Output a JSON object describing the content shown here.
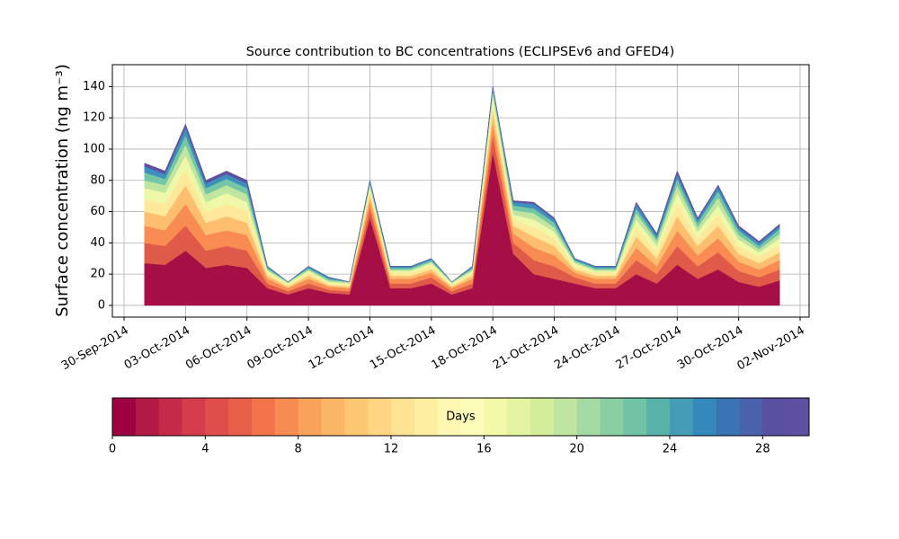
{
  "chart_data": {
    "type": "stacked_area",
    "title": "Source contribution to BC concentrations (ECLIPSEv6 and GFED4)",
    "y_label": "Surface concentration (ng m⁻³)",
    "x": [
      "2014-10-01",
      "2014-10-02",
      "2014-10-03",
      "2014-10-04",
      "2014-10-05",
      "2014-10-06",
      "2014-10-07",
      "2014-10-08",
      "2014-10-09",
      "2014-10-10",
      "2014-10-11",
      "2014-10-12",
      "2014-10-13",
      "2014-10-14",
      "2014-10-15",
      "2014-10-16",
      "2014-10-17",
      "2014-10-18",
      "2014-10-19",
      "2014-10-20",
      "2014-10-21",
      "2014-10-22",
      "2014-10-23",
      "2014-10-24",
      "2014-10-25",
      "2014-10-26",
      "2014-10-27",
      "2014-10-28",
      "2014-10-29",
      "2014-10-30",
      "2014-10-31",
      "2014-11-01"
    ],
    "series": [
      {
        "color": "#a50f45",
        "values": [
          27,
          26,
          35,
          24,
          26,
          24,
          11,
          7,
          11,
          8,
          7,
          56,
          11,
          11,
          14,
          7,
          11,
          98,
          33,
          20,
          17,
          14,
          11,
          11,
          20,
          14,
          26,
          17,
          23,
          15,
          12,
          16
        ]
      },
      {
        "color": "#e05a4a",
        "values": [
          13,
          12,
          16,
          11,
          12,
          11,
          3,
          2,
          3,
          2,
          2,
          6,
          3,
          3,
          4,
          2,
          3,
          11,
          7,
          9,
          8,
          4,
          3,
          3,
          9,
          6,
          12,
          8,
          11,
          7,
          6,
          7
        ]
      },
      {
        "color": "#f88c53",
        "values": [
          11,
          10,
          14,
          10,
          10,
          10,
          3,
          2,
          3,
          2,
          2,
          5,
          3,
          3,
          3,
          2,
          3,
          8,
          6,
          8,
          7,
          3,
          3,
          3,
          8,
          5,
          10,
          7,
          9,
          6,
          5,
          6
        ]
      },
      {
        "color": "#fdbf6f",
        "values": [
          9,
          9,
          12,
          8,
          9,
          8,
          2,
          1,
          2,
          1,
          1,
          4,
          2,
          2,
          2,
          1,
          2,
          7,
          5,
          7,
          6,
          2,
          2,
          2,
          7,
          5,
          9,
          6,
          8,
          5,
          4,
          5
        ]
      },
      {
        "color": "#fee99a",
        "values": [
          8,
          8,
          10,
          7,
          8,
          7,
          2,
          1,
          2,
          1,
          1,
          3,
          2,
          2,
          2,
          1,
          2,
          6,
          4,
          6,
          5,
          2,
          2,
          2,
          6,
          4,
          8,
          5,
          7,
          5,
          4,
          5
        ]
      },
      {
        "color": "#eff8a8",
        "values": [
          7,
          7,
          9,
          6,
          7,
          6,
          1,
          1,
          1,
          1,
          1,
          2,
          1,
          1,
          2,
          1,
          1,
          4,
          3,
          5,
          4,
          2,
          1,
          1,
          5,
          4,
          7,
          4,
          6,
          4,
          3,
          4
        ]
      },
      {
        "color": "#bfe5a0",
        "values": [
          5,
          5,
          7,
          5,
          5,
          5,
          1,
          1,
          1,
          1,
          1,
          2,
          1,
          1,
          1,
          1,
          1,
          3,
          3,
          4,
          3,
          1,
          1,
          1,
          4,
          3,
          5,
          3,
          5,
          3,
          2,
          3
        ]
      },
      {
        "color": "#74c6a4",
        "values": [
          5,
          4,
          6,
          4,
          4,
          4,
          1,
          0,
          1,
          1,
          0,
          1,
          1,
          1,
          1,
          0,
          1,
          2,
          3,
          3,
          3,
          1,
          1,
          1,
          3,
          2,
          4,
          3,
          4,
          3,
          2,
          3
        ]
      },
      {
        "color": "#3d8fbc",
        "values": [
          4,
          3,
          5,
          3,
          3,
          3,
          1,
          0,
          1,
          1,
          0,
          1,
          1,
          1,
          1,
          0,
          1,
          1,
          2,
          3,
          2,
          1,
          1,
          1,
          3,
          2,
          3,
          2,
          3,
          2,
          2,
          2
        ]
      },
      {
        "color": "#5e4fa2",
        "values": [
          2,
          2,
          2,
          2,
          2,
          2,
          0,
          0,
          0,
          0,
          0,
          0,
          0,
          0,
          0,
          0,
          0,
          0,
          1,
          1,
          1,
          0,
          0,
          0,
          1,
          1,
          2,
          1,
          1,
          1,
          1,
          1
        ]
      }
    ],
    "xlim": [
      "2014-09-30",
      "2014-11-02"
    ],
    "xticks": [
      {
        "value": "2014-09-30",
        "label": "30-Sep-2014"
      },
      {
        "value": "2014-10-03",
        "label": "03-Oct-2014"
      },
      {
        "value": "2014-10-06",
        "label": "06-Oct-2014"
      },
      {
        "value": "2014-10-09",
        "label": "09-Oct-2014"
      },
      {
        "value": "2014-10-12",
        "label": "12-Oct-2014"
      },
      {
        "value": "2014-10-15",
        "label": "15-Oct-2014"
      },
      {
        "value": "2014-10-18",
        "label": "18-Oct-2014"
      },
      {
        "value": "2014-10-21",
        "label": "21-Oct-2014"
      },
      {
        "value": "2014-10-24",
        "label": "24-Oct-2014"
      },
      {
        "value": "2014-10-27",
        "label": "27-Oct-2014"
      },
      {
        "value": "2014-10-30",
        "label": "30-Oct-2014"
      },
      {
        "value": "2014-11-02",
        "label": "02-Nov-2014"
      }
    ],
    "ylim": [
      -7.5,
      154
    ],
    "yticks": [
      0,
      20,
      40,
      60,
      80,
      100,
      120,
      140
    ],
    "grid": true,
    "colorbar": {
      "label": "Days",
      "lim": [
        0,
        30
      ],
      "ticks": [
        0,
        4,
        8,
        12,
        16,
        20,
        24,
        28
      ],
      "colors": [
        "#9e0142",
        "#b11a44",
        "#c52a48",
        "#d63c4b",
        "#df4e4b",
        "#e8604a",
        "#f3734a",
        "#f68c52",
        "#f9a25b",
        "#fbb566",
        "#fdc673",
        "#fed683",
        "#fee393",
        "#feeea1",
        "#fff7b2",
        "#fbfdb8",
        "#f2f9a9",
        "#e5f4a0",
        "#d4ed9b",
        "#bfe5a0",
        "#a5daa4",
        "#8acfa4",
        "#70c4a5",
        "#58b2aa",
        "#449db4",
        "#3588bb",
        "#3b74b4",
        "#4a62ab",
        "#5a50a2",
        "#5e4fa2"
      ]
    }
  }
}
